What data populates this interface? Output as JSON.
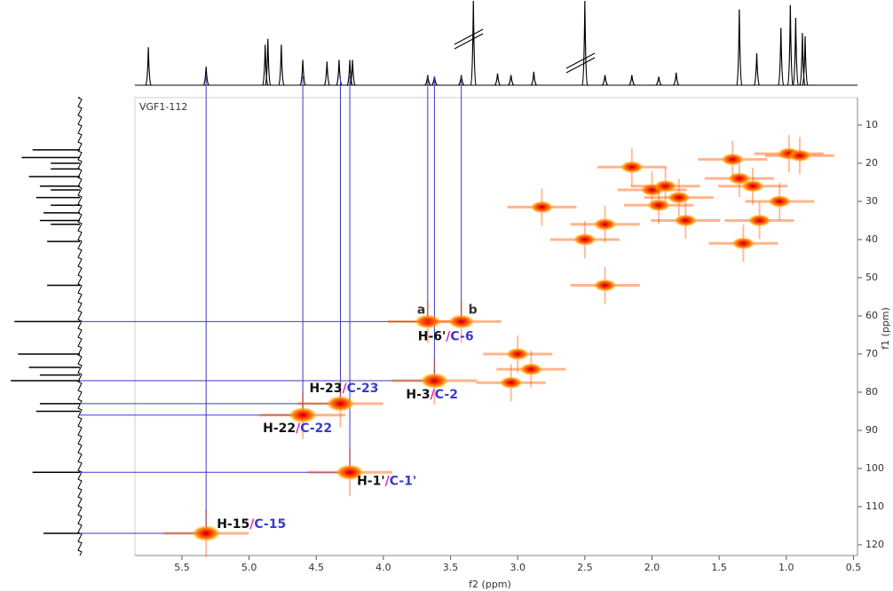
{
  "chart_data": {
    "type": "scatter",
    "title": "VGF1-112",
    "x_label": "f2 (ppm)",
    "y_label": "f1 (ppm)",
    "xlim": [
      5.85,
      0.47
    ],
    "ylim": [
      2.8,
      122.8
    ],
    "xticks": [
      5.5,
      {
        "value": 5,
        "label": "5.0"
      },
      4.5,
      {
        "value": 4,
        "label": "4.0"
      },
      3.5,
      {
        "value": 3,
        "label": "3.0"
      },
      2.5,
      {
        "value": 2,
        "label": "2.0"
      },
      1.5,
      {
        "value": 1,
        "label": "1.0"
      },
      0.5
    ],
    "yticks": [
      10,
      20,
      30,
      40,
      50,
      60,
      70,
      80,
      90,
      100,
      110,
      120
    ],
    "separator": "/",
    "colors": {
      "peak": "#ff5a00",
      "connector": "#3b3bc8",
      "h_text": "#111111",
      "c_text": "#3b3bc8",
      "separator": "#e020d0"
    },
    "assigned": {
      "x": [
        5.32,
        4.25,
        4.6,
        4.32,
        3.62
      ],
      "y": [
        117,
        101,
        86,
        83,
        77
      ],
      "h_labels": [
        "H-15",
        "H-1'",
        "H-22",
        "H-23",
        "H-3"
      ],
      "c_labels": [
        "C-15",
        "C-1'",
        "C-22",
        "C-23",
        "C-2"
      ]
    },
    "pair": {
      "h_label": "H-6'",
      "c_label": "C-6",
      "tags": [
        "a",
        "b"
      ],
      "x": [
        3.67,
        3.42
      ],
      "y": [
        61.5,
        61.5
      ]
    },
    "other_peaks": {
      "x": [
        3.05,
        3.0,
        2.9,
        2.15,
        2.5,
        2.35,
        2.35,
        2.0,
        1.9,
        1.8,
        1.95,
        1.75,
        2.82,
        1.35,
        1.32,
        1.2,
        0.98,
        0.9,
        1.4,
        1.25,
        1.05
      ],
      "y": [
        77.5,
        70,
        74,
        21,
        40,
        52,
        36,
        27,
        26,
        29,
        31,
        35,
        31.5,
        24,
        41,
        35,
        17.5,
        18,
        19,
        26,
        30
      ]
    },
    "proton_projection": {
      "x": [
        5.75,
        5.32,
        4.88,
        4.86,
        4.76,
        4.6,
        4.42,
        4.33,
        4.25,
        4.23,
        3.67,
        3.62,
        3.42,
        3.33,
        3.15,
        3.05,
        2.88,
        2.5,
        2.35,
        2.15,
        1.95,
        1.82,
        1.35,
        1.22,
        1.04,
        0.97,
        0.93,
        0.88,
        0.86
      ],
      "intensity": [
        45,
        22,
        48,
        55,
        48,
        30,
        28,
        30,
        30,
        30,
        12,
        10,
        12,
        100,
        14,
        12,
        16,
        100,
        12,
        12,
        10,
        15,
        90,
        38,
        68,
        95,
        80,
        62,
        58
      ]
    },
    "carbon_projection": {
      "y": [
        16.5,
        18.5,
        20,
        21.5,
        23.5,
        26,
        27,
        29,
        31,
        33,
        35,
        36,
        40.5,
        52,
        61.5,
        70,
        73.5,
        75.5,
        77,
        83,
        85,
        101,
        117
      ],
      "intensity": [
        65,
        80,
        40,
        40,
        70,
        55,
        40,
        60,
        40,
        50,
        55,
        40,
        45,
        45,
        90,
        85,
        70,
        55,
        95,
        55,
        60,
        65,
        50
      ]
    }
  }
}
